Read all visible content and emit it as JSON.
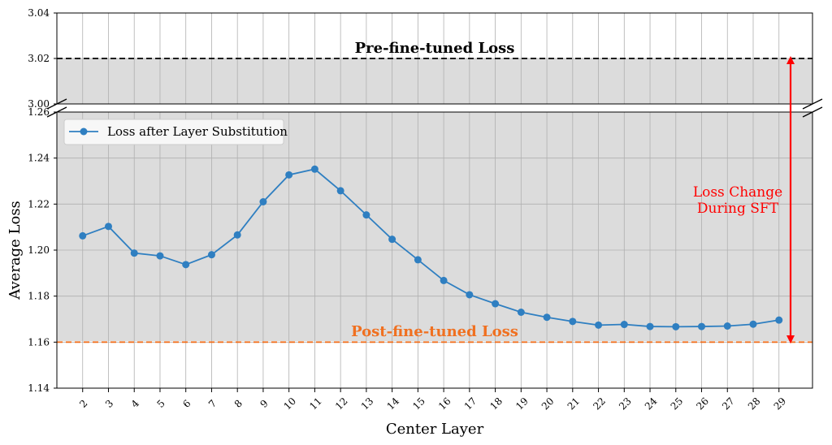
{
  "chart_data": {
    "type": "line",
    "xlabel": "Center Layer",
    "ylabel": "Average Loss",
    "x": [
      2,
      3,
      4,
      5,
      6,
      7,
      8,
      9,
      10,
      11,
      12,
      13,
      14,
      15,
      16,
      17,
      18,
      19,
      20,
      21,
      22,
      23,
      24,
      25,
      26,
      27,
      28,
      29
    ],
    "series": [
      {
        "name": "Loss after Layer Substitution",
        "color": "#2f7fc1",
        "values": [
          1.2062,
          1.2103,
          1.1987,
          1.1975,
          1.1937,
          1.198,
          1.2066,
          1.221,
          1.2327,
          1.2352,
          1.2258,
          1.2153,
          1.2047,
          1.1958,
          1.1868,
          1.1806,
          1.1767,
          1.173,
          1.1708,
          1.169,
          1.1674,
          1.1677,
          1.1668,
          1.1667,
          1.1668,
          1.167,
          1.1678,
          1.1696
        ]
      }
    ],
    "broken_axis": {
      "upper": {
        "ylim": [
          3.0,
          3.04
        ],
        "ticks": [
          "3.00",
          "3.02",
          "3.04"
        ]
      },
      "lower": {
        "ylim": [
          1.14,
          1.26
        ],
        "ticks": [
          "1.14",
          "1.16",
          "1.18",
          "1.20",
          "1.22",
          "1.24",
          "1.26"
        ]
      }
    },
    "reference_lines": [
      {
        "label": "Pre-fine-tuned Loss",
        "value": 3.02,
        "color": "#000000",
        "panel": "upper"
      },
      {
        "label": "Post-fine-tuned Loss",
        "value": 1.16,
        "color": "#f07020",
        "panel": "lower"
      }
    ],
    "annotation": {
      "text_line1": "Loss Change",
      "text_line2": "During SFT",
      "color": "#ff0000",
      "from": 3.02,
      "to": 1.16
    },
    "legend_position": "upper-left",
    "grid": true,
    "shaded_region_color": "#dcdcdc"
  }
}
